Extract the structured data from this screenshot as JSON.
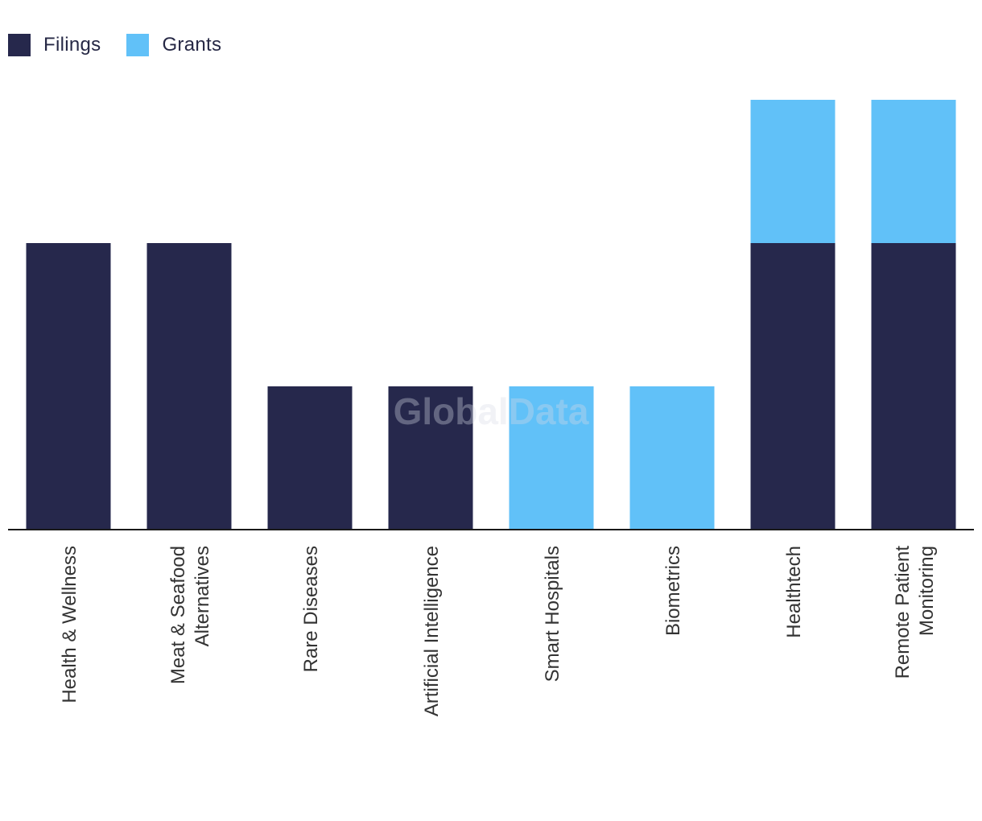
{
  "legend": {
    "filings_label": "Filings",
    "grants_label": "Grants"
  },
  "colors": {
    "filings": "#26284c",
    "grants": "#61c1f8",
    "axis": "#1a1a1a",
    "label": "#333333"
  },
  "watermark": "GlobalData",
  "chart_data": {
    "type": "bar",
    "stacked": true,
    "categories": [
      [
        "Health & Wellness"
      ],
      [
        "Meat & Seafood",
        "Alternatives"
      ],
      [
        "Rare Diseases"
      ],
      [
        "Artificial Intelligence"
      ],
      [
        "Smart Hospitals"
      ],
      [
        "Biometrics"
      ],
      [
        "Healthtech"
      ],
      [
        "Remote Patient",
        "Monitoring"
      ]
    ],
    "series": [
      {
        "name": "Filings",
        "values": [
          2,
          2,
          1,
          1,
          0,
          0,
          2,
          2
        ]
      },
      {
        "name": "Grants",
        "values": [
          0,
          0,
          0,
          0,
          1,
          1,
          1,
          1
        ]
      }
    ],
    "ylim": [
      0,
      3
    ],
    "grid": false,
    "legend_position": "top-left"
  }
}
